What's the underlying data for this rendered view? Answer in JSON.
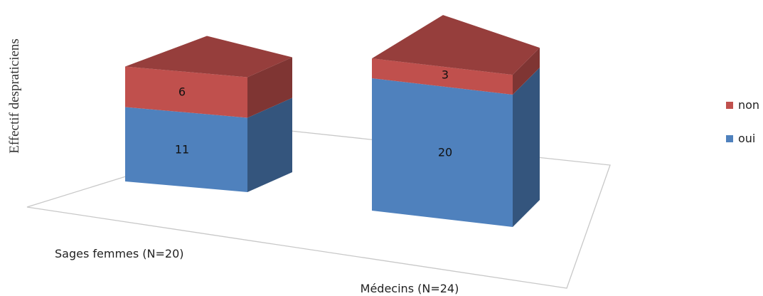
{
  "chart_data": {
    "type": "bar",
    "stacked": true,
    "three_d": true,
    "title": "",
    "xlabel": "",
    "ylabel": "Effectif despraticiens",
    "categories": [
      "Sages femmes (N=20)",
      "Médecins (N=24)"
    ],
    "series": [
      {
        "name": "oui",
        "values": [
          11,
          20
        ],
        "color": "#4F81BD"
      },
      {
        "name": "non",
        "values": [
          6,
          3
        ],
        "color": "#C0504D"
      }
    ],
    "legend_position": "right",
    "legend_order": [
      "non",
      "oui"
    ],
    "grid": false
  }
}
